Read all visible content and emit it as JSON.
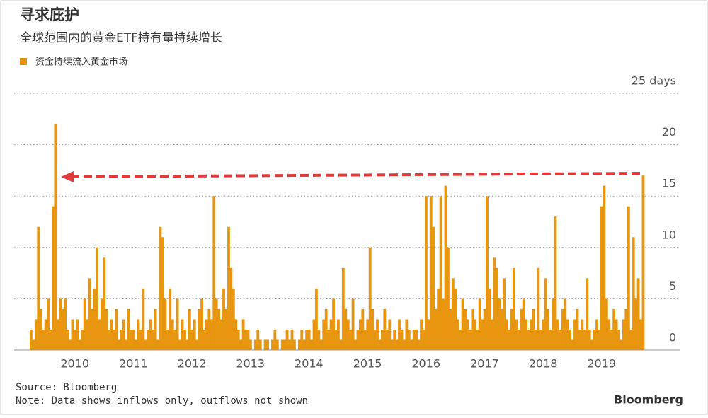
{
  "chart_data": {
    "type": "bar",
    "title": "寻求庇护",
    "subtitle": "全球范围内的黄金ETF持有量持续增长",
    "legend_label": "资金持续流入黄金市场",
    "color": "#e8950f",
    "categories": [
      null,
      null,
      null,
      null,
      null,
      null,
      null,
      null,
      null,
      null,
      null,
      null,
      null,
      null,
      null,
      null,
      null,
      null,
      "2010",
      null,
      null,
      null,
      null,
      null,
      null,
      null,
      null,
      null,
      null,
      null,
      null,
      null,
      null,
      null,
      null,
      null,
      null,
      null,
      null,
      null,
      null,
      null,
      "2011",
      null,
      null,
      null,
      null,
      null,
      null,
      null,
      null,
      null,
      null,
      null,
      null,
      null,
      null,
      null,
      null,
      null,
      null,
      null,
      null,
      null,
      null,
      null,
      "2012",
      null,
      null,
      null,
      null,
      null,
      null,
      null,
      null,
      null,
      null,
      null,
      null,
      null,
      null,
      null,
      null,
      null,
      null,
      null,
      null,
      null,
      null,
      null,
      "2013",
      null,
      null,
      null,
      null,
      null,
      null,
      null,
      null,
      null,
      null,
      null,
      null,
      null,
      null,
      null,
      null,
      null,
      null,
      null,
      null,
      null,
      null,
      null,
      "2014",
      null,
      null,
      null,
      null,
      null,
      null,
      null,
      null,
      null,
      null,
      null,
      null,
      null,
      null,
      null,
      null,
      null,
      null,
      null,
      null,
      null,
      null,
      null,
      "2015",
      null,
      null,
      null,
      null,
      null,
      null,
      null,
      null,
      null,
      null,
      null,
      null,
      null,
      null,
      null,
      null,
      null,
      null,
      null,
      null,
      null,
      null,
      null,
      "2016",
      null,
      null,
      null,
      null,
      null,
      null,
      null,
      null,
      null,
      null,
      null,
      null,
      null,
      null,
      null,
      null,
      null,
      null,
      null,
      null,
      null,
      null,
      null,
      "2017",
      null,
      null,
      null,
      null,
      null,
      null,
      null,
      null,
      null,
      null,
      null,
      null,
      null,
      null,
      null,
      null,
      null,
      null,
      null,
      null,
      null,
      null,
      null,
      "2018",
      null,
      null,
      null,
      null,
      null,
      null,
      null,
      null,
      null,
      null,
      null,
      null,
      null,
      null,
      null,
      null,
      null,
      null,
      null,
      null,
      null,
      null,
      null,
      "2019",
      null,
      null,
      null,
      null,
      null,
      null,
      null,
      null,
      null,
      null,
      null,
      null,
      null,
      null,
      null,
      null,
      null
    ],
    "values": [
      2,
      1,
      3,
      12,
      4,
      2,
      3,
      5,
      2,
      14,
      22,
      3,
      5,
      4,
      5,
      2,
      1,
      3,
      2,
      3,
      1,
      2,
      5,
      3,
      7,
      4,
      6,
      10,
      3,
      5,
      9,
      4,
      2,
      3,
      2,
      4,
      1,
      2,
      3,
      1,
      4,
      2,
      2,
      1,
      3,
      2,
      6,
      1,
      2,
      3,
      2,
      4,
      1,
      12,
      11,
      5,
      2,
      6,
      3,
      2,
      5,
      1,
      3,
      2,
      1,
      4,
      2,
      3,
      1,
      4,
      5,
      2,
      3,
      4,
      3,
      15,
      5,
      4,
      3,
      6,
      4,
      12,
      8,
      6,
      3,
      2,
      1,
      3,
      2,
      2,
      1,
      0,
      1,
      2,
      1,
      0,
      1,
      1,
      0,
      1,
      2,
      1,
      0,
      1,
      1,
      2,
      1,
      2,
      1,
      0,
      1,
      2,
      1,
      2,
      2,
      1,
      3,
      6,
      2,
      1,
      3,
      4,
      2,
      3,
      5,
      2,
      3,
      1,
      8,
      4,
      3,
      2,
      5,
      1,
      2,
      3,
      4,
      2,
      3,
      10,
      4,
      2,
      3,
      1,
      2,
      4,
      2,
      3,
      1,
      2,
      1,
      3,
      2,
      1,
      3,
      2,
      1,
      2,
      2,
      1,
      3,
      2,
      15,
      3,
      15,
      12,
      4,
      6,
      15,
      5,
      16,
      10,
      4,
      7,
      6,
      3,
      2,
      5,
      4,
      3,
      2,
      4,
      3,
      2,
      5,
      3,
      4,
      15,
      6,
      3,
      9,
      8,
      5,
      4,
      7,
      3,
      2,
      4,
      8,
      3,
      2,
      4,
      5,
      3,
      2,
      3,
      4,
      2,
      8,
      2,
      3,
      7,
      4,
      2,
      5,
      13,
      3,
      2,
      4,
      5,
      3,
      2,
      1,
      3,
      4,
      2,
      3,
      2,
      7,
      2,
      1,
      2,
      3,
      2,
      14,
      16,
      5,
      3,
      2,
      4,
      3,
      2,
      1,
      3,
      4,
      14,
      2,
      11,
      5,
      7,
      3,
      17
    ],
    "ylim": [
      0,
      25
    ],
    "yticks": [
      0,
      5,
      10,
      15,
      20,
      {
        "value": 25,
        "label": "25 days"
      }
    ],
    "grid": true,
    "source": "Source: Bloomberg",
    "note": "Note: Data shows inflows only, outflows not shown",
    "logo": "Bloomberg"
  }
}
